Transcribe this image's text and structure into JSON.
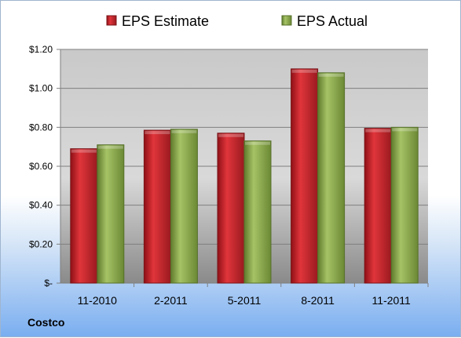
{
  "chart_data": {
    "type": "bar",
    "categories": [
      "11-2010",
      "2-2011",
      "5-2011",
      "8-2011",
      "11-2011"
    ],
    "series": [
      {
        "name": "EPS Estimate",
        "values": [
          0.69,
          0.785,
          0.77,
          1.1,
          0.795
        ],
        "color": "#c0262c"
      },
      {
        "name": "EPS Actual",
        "values": [
          0.71,
          0.79,
          0.73,
          1.08,
          0.8
        ],
        "color": "#8aa84a"
      }
    ],
    "ylim": [
      0,
      1.2
    ],
    "y_ticks": [
      "$-",
      "$0.20",
      "$0.40",
      "$0.60",
      "$0.80",
      "$1.00",
      "$1.20"
    ],
    "grid": true,
    "legend_position": "top-center"
  },
  "company": "Costco"
}
